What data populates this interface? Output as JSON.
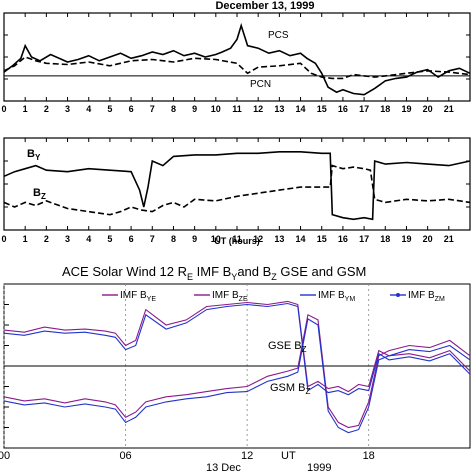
{
  "chart_data": [
    {
      "type": "line",
      "title": "December 13, 1999",
      "xlabel": "",
      "ylabel": "",
      "xlim": [
        0,
        22
      ],
      "x_ticks": [
        "0",
        "1",
        "2",
        "3",
        "4",
        "5",
        "6",
        "7",
        "8",
        "9",
        "10",
        "11",
        "12",
        "13",
        "14",
        "15",
        "16",
        "17",
        "18",
        "19",
        "20",
        "21"
      ],
      "baseline": 0,
      "annotations": [
        "PCS",
        "PCN"
      ],
      "series": [
        {
          "name": "PCS",
          "style": "solid",
          "x": [
            0,
            0.4,
            0.8,
            1,
            1.3,
            1.7,
            2.2,
            3,
            3.5,
            4,
            4.5,
            5,
            5.5,
            6,
            6.5,
            7,
            7.5,
            8,
            8.5,
            9,
            9.5,
            10,
            10.3,
            10.7,
            11,
            11.2,
            11.5,
            12,
            12.5,
            13,
            13.5,
            14,
            14.3,
            14.7,
            15,
            15.3,
            15.7,
            16,
            16.5,
            17,
            17.5,
            18,
            18.5,
            19,
            19.5,
            20,
            20.5,
            21,
            21.5,
            22
          ],
          "y": [
            0.3,
            0.8,
            1.4,
            2.4,
            1.5,
            1.2,
            1.7,
            1.1,
            1.3,
            1.6,
            1.2,
            1.5,
            1.8,
            1.4,
            1.6,
            1.9,
            1.7,
            2.0,
            1.6,
            1.8,
            1.5,
            1.7,
            1.9,
            2.2,
            2.9,
            4.0,
            2.4,
            2.2,
            1.8,
            2.0,
            1.6,
            1.8,
            1.4,
            1.0,
            0.2,
            -0.9,
            -1.3,
            -1.1,
            -1.4,
            -1.5,
            -1.0,
            -0.4,
            -0.2,
            -0.1,
            0.3,
            0.5,
            -0.1,
            0.4,
            0.6,
            0.2
          ]
        },
        {
          "name": "PCN",
          "style": "dashed",
          "x": [
            0,
            0.5,
            1,
            1.5,
            2,
            3,
            4,
            5,
            6,
            7,
            8,
            9,
            10,
            11,
            11.5,
            12,
            13,
            14,
            14.5,
            15,
            15.5,
            16,
            16.5,
            17,
            17.5,
            18,
            19,
            20,
            21,
            22
          ],
          "y": [
            0.4,
            0.8,
            1.5,
            1.2,
            1.0,
            0.9,
            1.1,
            0.8,
            1.2,
            1.3,
            1.1,
            1.4,
            1.3,
            1.0,
            0.2,
            0.7,
            0.8,
            1.0,
            0.2,
            -0.1,
            -0.2,
            -0.2,
            0.1,
            0.0,
            -0.1,
            0.0,
            0.2,
            0.4,
            0.3,
            0.1
          ]
        }
      ]
    },
    {
      "type": "line",
      "title": "",
      "xlabel": "UT (hours)",
      "ylabel": "",
      "xlim": [
        0,
        22
      ],
      "x_ticks": [
        "0",
        "1",
        "2",
        "3",
        "4",
        "5",
        "6",
        "7",
        "8",
        "9",
        "10",
        "11",
        "12",
        "13",
        "14",
        "15",
        "16",
        "17",
        "18",
        "19",
        "20",
        "21"
      ],
      "annotations": [
        "B",
        "Y",
        "B",
        "Z"
      ],
      "series": [
        {
          "name": "BY",
          "style": "solid",
          "x": [
            0,
            0.5,
            1,
            1.5,
            2,
            3,
            4,
            5,
            6,
            6.4,
            6.6,
            6.8,
            7,
            7.5,
            8,
            9,
            10,
            11,
            12,
            13,
            14,
            15,
            15.4,
            15.5,
            16,
            16.5,
            17,
            17.4,
            17.5,
            18,
            19,
            20,
            21,
            22
          ],
          "y": [
            0.5,
            0.8,
            1.0,
            1.2,
            0.9,
            0.8,
            1.0,
            0.9,
            0.8,
            -0.4,
            -1.5,
            -0.2,
            1.5,
            1.2,
            1.8,
            1.9,
            1.9,
            2.0,
            2.0,
            2.1,
            2.1,
            2.0,
            2.0,
            -2.0,
            -2.2,
            -2.3,
            -2.2,
            -2.3,
            1.5,
            1.3,
            1.4,
            1.3,
            1.2,
            1.5
          ]
        },
        {
          "name": "BZ",
          "style": "dashed",
          "x": [
            0,
            0.5,
            1,
            1.5,
            2,
            3,
            4,
            5,
            5.5,
            6,
            6.5,
            7,
            7.5,
            8,
            8.5,
            9,
            10,
            11,
            12,
            13,
            14,
            15,
            15.4,
            15.5,
            16,
            16.5,
            17,
            17.3,
            17.5,
            18,
            19,
            20,
            21,
            22
          ],
          "y": [
            -1.2,
            -1.5,
            -1.2,
            -1.4,
            -1.1,
            -1.6,
            -1.8,
            -2.0,
            -1.8,
            -1.5,
            -1.7,
            -1.8,
            -1.4,
            -1.2,
            -1.5,
            -1.0,
            -1.1,
            -0.8,
            -0.6,
            -0.4,
            -0.2,
            -0.2,
            -0.2,
            1.2,
            1.0,
            1.1,
            1.0,
            0.9,
            -1.0,
            -1.2,
            -1.0,
            -1.1,
            -1.0,
            -1.2
          ]
        }
      ]
    },
    {
      "type": "line",
      "title": "ACE  Solar Wind 12 R",
      "title_parts": [
        "ACE  Solar Wind 12 R",
        "E",
        " IMF B",
        "Y",
        "and B",
        "Z",
        " GSE and GSM"
      ],
      "xlabel": "UT",
      "x_ticks": [
        "00",
        "06",
        "12",
        "18"
      ],
      "x_tick_hours": [
        0,
        6,
        12,
        18
      ],
      "xlim": [
        0,
        23
      ],
      "footer": [
        "13 Dec",
        "1999"
      ],
      "baseline": 0,
      "annotations": [
        {
          "text": "GSE B",
          "sub": "Z"
        },
        {
          "text": "GSM B",
          "sub": "Z"
        }
      ],
      "legend": [
        {
          "label": "IMF B",
          "sub": "YE",
          "color": "#8b1a8b"
        },
        {
          "label": "IMF B",
          "sub": "ZE",
          "color": "#8b1a8b"
        },
        {
          "label": "IMF B",
          "sub": "YM",
          "color": "#2233cc"
        },
        {
          "label": "IMF B",
          "sub": "ZM",
          "color": "#2233cc"
        }
      ],
      "series": [
        {
          "name": "IMF BYE",
          "color": "#8b1a8b",
          "x": [
            0,
            1,
            2,
            3,
            4,
            5,
            5.5,
            6,
            6.5,
            7,
            8,
            9,
            10,
            11,
            12,
            13,
            14,
            14.5,
            15,
            15.5,
            16,
            16.5,
            17,
            17.5,
            18,
            18.5,
            19,
            20,
            21,
            22,
            23
          ],
          "y": [
            3.5,
            3.3,
            3.8,
            3.5,
            3.6,
            3.4,
            3.2,
            2.0,
            2.5,
            5.5,
            4.0,
            4.5,
            5.8,
            6.0,
            6.2,
            6.0,
            6.3,
            6.0,
            -2.0,
            -1.5,
            -2.2,
            -2.0,
            -2.5,
            -1.8,
            -2.0,
            1.5,
            1.0,
            1.2,
            0.8,
            1.5,
            -0.5
          ]
        },
        {
          "name": "IMF BZE",
          "color": "#8b1a8b",
          "x": [
            0,
            1,
            2,
            3,
            4,
            5,
            5.5,
            6,
            6.5,
            7,
            8,
            9,
            10,
            11,
            12,
            13,
            14,
            14.5,
            15,
            15.5,
            16,
            16.5,
            17,
            17.5,
            18,
            18.5,
            19,
            20,
            21,
            22,
            23
          ],
          "y": [
            -3.0,
            -3.4,
            -3.2,
            -3.6,
            -3.2,
            -3.5,
            -3.8,
            -5.0,
            -4.5,
            -3.5,
            -3.0,
            -2.8,
            -2.5,
            -2.2,
            -2.0,
            -1.0,
            -0.5,
            -0.2,
            5.0,
            4.5,
            -4.0,
            -5.5,
            -6.0,
            -5.8,
            -3.5,
            1.0,
            1.5,
            2.0,
            1.8,
            2.5,
            1.0
          ]
        },
        {
          "name": "IMF BYM",
          "color": "#2233cc",
          "x": [
            0,
            1,
            2,
            3,
            4,
            5,
            5.5,
            6,
            6.5,
            7,
            8,
            9,
            10,
            11,
            12,
            13,
            14,
            14.5,
            15,
            15.5,
            16,
            16.5,
            17,
            17.5,
            18,
            18.5,
            19,
            20,
            21,
            22,
            23
          ],
          "y": [
            3.2,
            3.0,
            3.4,
            3.2,
            3.3,
            3.0,
            2.8,
            1.6,
            2.0,
            5.0,
            3.6,
            4.2,
            5.5,
            5.8,
            6.0,
            5.8,
            6.1,
            5.8,
            -2.4,
            -1.8,
            -2.6,
            -2.4,
            -2.8,
            -2.2,
            -2.4,
            1.2,
            0.6,
            0.9,
            0.5,
            1.2,
            -0.8
          ]
        },
        {
          "name": "IMF BZM",
          "color": "#2233cc",
          "x": [
            0,
            1,
            2,
            3,
            4,
            5,
            5.5,
            6,
            6.5,
            7,
            8,
            9,
            10,
            11,
            12,
            13,
            14,
            14.5,
            15,
            15.5,
            16,
            16.5,
            17,
            17.5,
            18,
            18.5,
            19,
            20,
            21,
            22,
            23
          ],
          "y": [
            -3.4,
            -3.8,
            -3.6,
            -4.0,
            -3.7,
            -4.0,
            -4.2,
            -5.5,
            -5.0,
            -4.0,
            -3.5,
            -3.2,
            -3.0,
            -2.6,
            -2.5,
            -1.5,
            -1.0,
            -0.6,
            4.6,
            4.0,
            -4.4,
            -6.0,
            -6.5,
            -6.2,
            -4.0,
            0.6,
            1.0,
            1.6,
            1.4,
            2.0,
            0.6
          ]
        }
      ]
    }
  ]
}
